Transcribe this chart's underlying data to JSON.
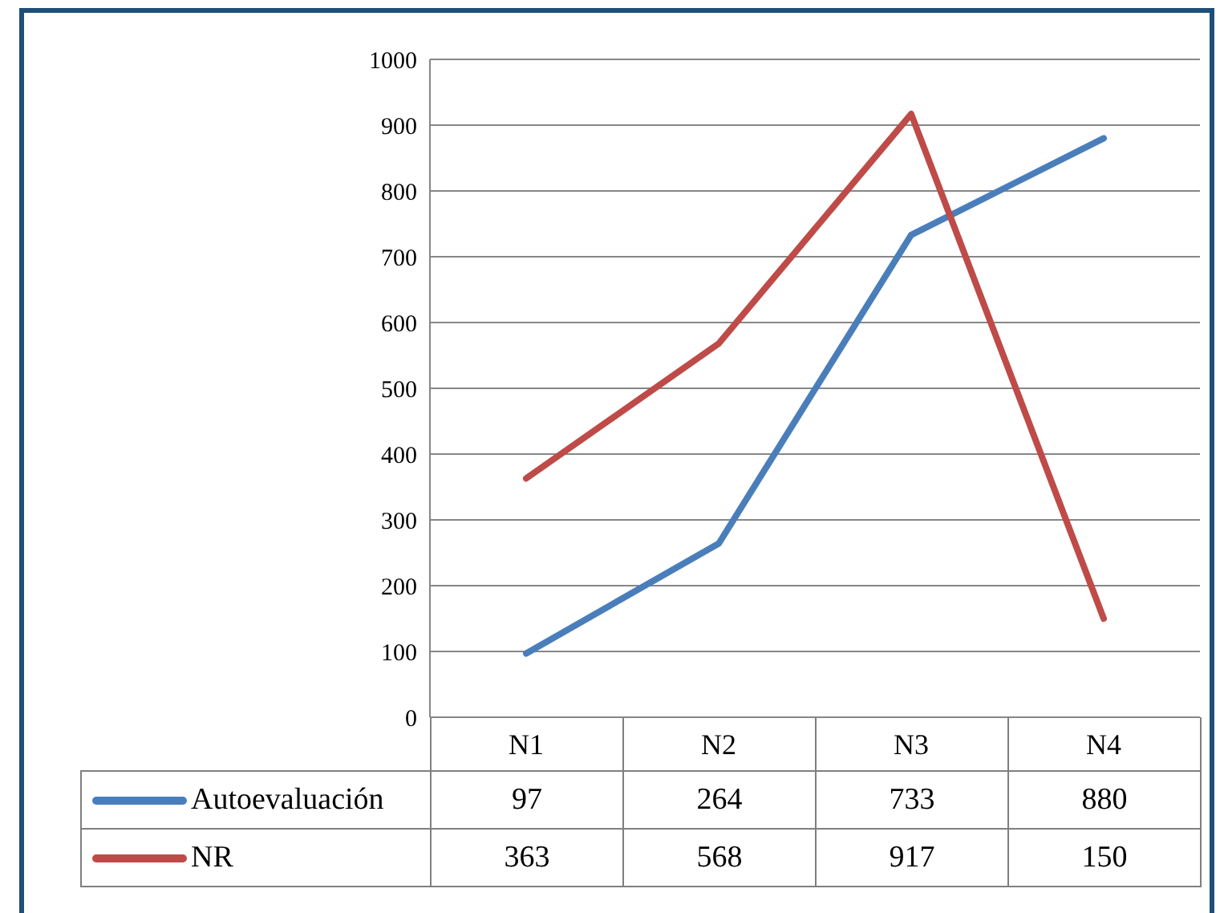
{
  "chart_data": {
    "type": "line",
    "categories": [
      "N1",
      "N2",
      "N3",
      "N4"
    ],
    "series": [
      {
        "name": "Autoevaluación",
        "color": "#4a7ebb",
        "values": [
          97,
          264,
          733,
          880
        ]
      },
      {
        "name": "NR",
        "color": "#be4b48",
        "values": [
          363,
          568,
          917,
          150
        ]
      }
    ],
    "ylim": [
      0,
      1000
    ],
    "yticks": [
      0,
      100,
      200,
      300,
      400,
      500,
      600,
      700,
      800,
      900,
      1000
    ],
    "grid": "y",
    "legend": "bottom",
    "marker": "none",
    "data_labels": true
  }
}
